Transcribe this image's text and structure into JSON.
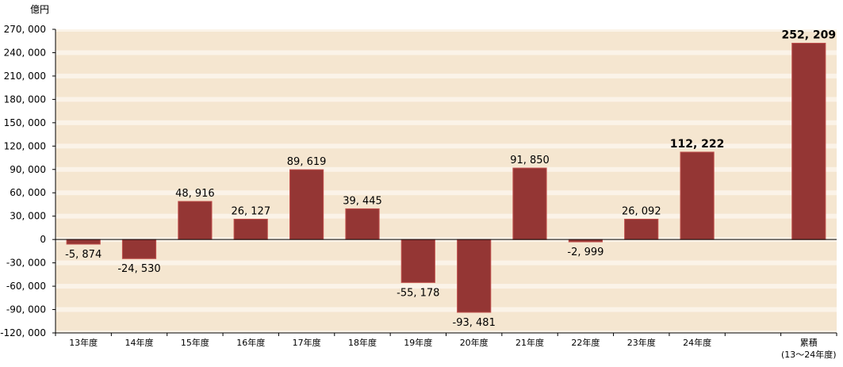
{
  "chart_data": {
    "type": "bar",
    "unit_label": "億円",
    "categories": [
      "13年度",
      "14年度",
      "15年度",
      "16年度",
      "17年度",
      "18年度",
      "19年度",
      "20年度",
      "21年度",
      "22年度",
      "23年度",
      "24年度",
      "累積"
    ],
    "category_sublabels": [
      "",
      "",
      "",
      "",
      "",
      "",
      "",
      "",
      "",
      "",
      "",
      "",
      "(13～24年度)"
    ],
    "values": [
      -5874,
      -24530,
      48916,
      26127,
      89619,
      39445,
      -55178,
      -93481,
      91850,
      -2999,
      26092,
      112222,
      252209
    ],
    "value_labels": [
      "-5, 874",
      "-24, 530",
      "48, 916",
      "26, 127",
      "89, 619",
      "39, 445",
      "-55, 178",
      "-93, 481",
      "91, 850",
      "-2, 999",
      "26, 092",
      "112, 222",
      "252, 209"
    ],
    "bold_labels": [
      false,
      false,
      false,
      false,
      false,
      false,
      false,
      false,
      false,
      false,
      false,
      true,
      true
    ],
    "y_ticks": [
      270000,
      240000,
      210000,
      180000,
      150000,
      120000,
      90000,
      60000,
      30000,
      0,
      -30000,
      -60000,
      -90000,
      -120000
    ],
    "y_tick_labels": [
      "270, 000",
      "240, 000",
      "210, 000",
      "180, 000",
      "150, 000",
      "120, 000",
      "90, 000",
      "60, 000",
      "30, 000",
      "0",
      "-30, 000",
      "-60, 000",
      "-90, 000",
      "-120, 000"
    ],
    "ylim": [
      -120000,
      270000
    ],
    "title": "",
    "xlabel": "",
    "ylabel": "",
    "grid": false,
    "colors": {
      "bar_fill": "#943634",
      "bar_stroke": "#c0504d",
      "band_dark": "#f5e6d0",
      "band_light": "#fbf3e8",
      "axis": "#000000"
    }
  }
}
